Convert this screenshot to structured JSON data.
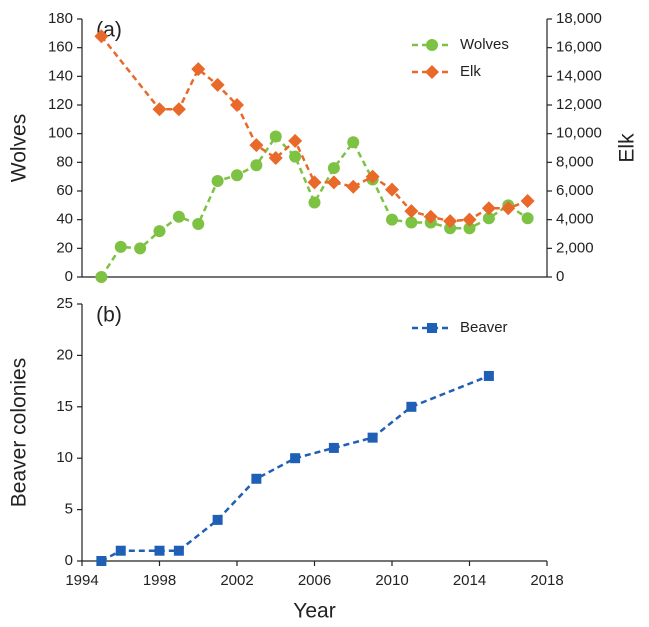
{
  "chart_data": [
    {
      "type": "line",
      "annotation": "(a)",
      "ylabel": "Wolves",
      "y2label": "Elk",
      "xlim": [
        1994,
        2018
      ],
      "ylim": [
        0,
        180
      ],
      "yticks": [
        0,
        20,
        40,
        60,
        80,
        100,
        120,
        140,
        160,
        180
      ],
      "y2lim": [
        0,
        18000
      ],
      "y2ticks": [
        0,
        {
          "value": 2000,
          "label": "2,000"
        },
        {
          "value": 4000,
          "label": "4,000"
        },
        {
          "value": 6000,
          "label": "6,000"
        },
        {
          "value": 8000,
          "label": "8,000"
        },
        {
          "value": 10000,
          "label": "10,000"
        },
        {
          "value": 12000,
          "label": "12,000"
        },
        {
          "value": 14000,
          "label": "14,000"
        },
        {
          "value": 16000,
          "label": "16,000"
        },
        {
          "value": 18000,
          "label": "18,000"
        }
      ],
      "legend": "upper right",
      "series": [
        {
          "name": "Wolves",
          "color": "#7dc242",
          "marker": "circle",
          "x": [
            1995,
            1996,
            1997,
            1998,
            1999,
            2000,
            2001,
            2002,
            2003,
            2004,
            2005,
            2006,
            2007,
            2008,
            2009,
            2010,
            2011,
            2012,
            2013,
            2014,
            2015,
            2016,
            2017
          ],
          "values": [
            0,
            21,
            20,
            32,
            42,
            37,
            67,
            71,
            78,
            98,
            84,
            52,
            76,
            94,
            68,
            40,
            38,
            38,
            34,
            34,
            41,
            50,
            41
          ]
        },
        {
          "name": "Elk",
          "color": "#e8692a",
          "marker": "diamond",
          "axis": "y2",
          "x": [
            1995,
            1998,
            1999,
            2000,
            2001,
            2002,
            2003,
            2004,
            2005,
            2006,
            2007,
            2008,
            2009,
            2010,
            2011,
            2012,
            2013,
            2014,
            2015,
            2016,
            2017
          ],
          "values": [
            16800,
            11700,
            11700,
            14500,
            13400,
            12000,
            9200,
            8300,
            9500,
            6600,
            6600,
            6300,
            7000,
            6100,
            4600,
            4200,
            3900,
            4000,
            4800,
            4800,
            5300
          ]
        }
      ]
    },
    {
      "type": "line",
      "annotation": "(b)",
      "ylabel": "Beaver colonies",
      "xlabel": "Year",
      "xlim": [
        1994,
        2018
      ],
      "xticks": [
        1994,
        1998,
        2002,
        2006,
        2010,
        2014,
        2018
      ],
      "ylim": [
        0,
        25
      ],
      "yticks": [
        0,
        5,
        10,
        15,
        20,
        25
      ],
      "legend": "upper right",
      "series": [
        {
          "name": "Beaver",
          "color": "#1f5fb5",
          "marker": "square",
          "x": [
            1995,
            1996,
            1998,
            1999,
            2001,
            2003,
            2005,
            2007,
            2009,
            2011,
            2015
          ],
          "values": [
            0,
            1,
            1,
            1,
            4,
            8,
            10,
            11,
            12,
            15,
            18
          ]
        }
      ]
    }
  ]
}
